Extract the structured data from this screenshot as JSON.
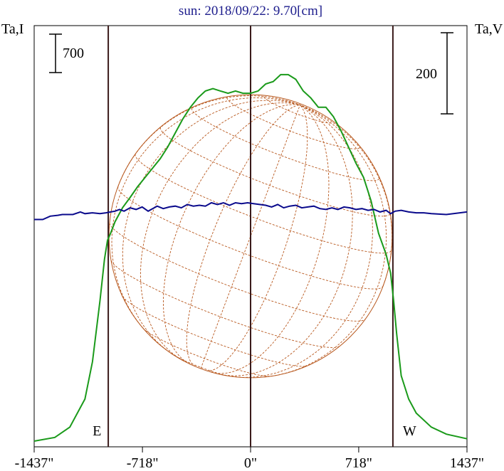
{
  "chart_data": {
    "type": "line",
    "title": "sun: 2018/09/22: 9.70[cm]",
    "left_axis_label": "Ta,I",
    "right_axis_label": "Ta,V",
    "left_scale_bar": "700",
    "right_scale_bar": "200",
    "x_ticks": [
      {
        "value": -1437,
        "label": "-1437\""
      },
      {
        "value": -718,
        "label": "-718\""
      },
      {
        "value": 0,
        "label": "0\""
      },
      {
        "value": 718,
        "label": "718\""
      },
      {
        "value": 1437,
        "label": "1437\""
      }
    ],
    "xlim": [
      -1437,
      1437
    ],
    "limb_markers": [
      {
        "value": -945,
        "label": "E"
      },
      {
        "value": 0,
        "label": ""
      },
      {
        "value": 945,
        "label": "W"
      }
    ],
    "colors": {
      "intensity": "#1a9a1a",
      "polarization": "#0a0a8c",
      "grid": "#b8581e",
      "markers": "#3a1a1a",
      "title": "#1c1c8c"
    },
    "series": [
      {
        "name": "I",
        "axis": "left",
        "x": [
          -1437,
          -1300,
          -1200,
          -1100,
          -1050,
          -1000,
          -970,
          -950,
          -930,
          -900,
          -850,
          -800,
          -750,
          -700,
          -650,
          -600,
          -550,
          -500,
          -450,
          -400,
          -350,
          -300,
          -250,
          -200,
          -150,
          -100,
          -50,
          0,
          50,
          100,
          150,
          200,
          250,
          300,
          350,
          400,
          450,
          500,
          550,
          600,
          650,
          700,
          750,
          800,
          850,
          900,
          930,
          950,
          970,
          1000,
          1050,
          1100,
          1200,
          1300,
          1437
        ],
        "y": [
          0,
          80,
          300,
          900,
          1700,
          3000,
          3900,
          4300,
          4450,
          4700,
          5000,
          5220,
          5450,
          5650,
          5850,
          6050,
          6300,
          6600,
          6900,
          7150,
          7350,
          7500,
          7550,
          7500,
          7450,
          7500,
          7450,
          7450,
          7500,
          7650,
          7700,
          7850,
          7850,
          7750,
          7500,
          7350,
          7150,
          7150,
          6950,
          6650,
          6300,
          5950,
          5650,
          5150,
          4450,
          4000,
          3600,
          3000,
          2300,
          1400,
          900,
          600,
          300,
          150,
          50
        ]
      },
      {
        "name": "V",
        "axis": "right",
        "x": [
          -1437,
          -1380,
          -1330,
          -1280,
          -1250,
          -1180,
          -1130,
          -1100,
          -1050,
          -1000,
          -960,
          -930,
          -900,
          -870,
          -840,
          -800,
          -760,
          -720,
          -680,
          -650,
          -620,
          -580,
          -540,
          -500,
          -460,
          -420,
          -380,
          -340,
          -300,
          -260,
          -220,
          -180,
          -140,
          -100,
          -60,
          -20,
          20,
          60,
          100,
          140,
          180,
          220,
          260,
          300,
          340,
          380,
          420,
          460,
          500,
          540,
          580,
          620,
          660,
          700,
          740,
          780,
          820,
          860,
          900,
          930,
          960,
          1000,
          1050,
          1100,
          1150,
          1200,
          1300,
          1437
        ],
        "y": [
          0,
          0,
          20,
          25,
          30,
          30,
          45,
          35,
          40,
          35,
          40,
          45,
          50,
          60,
          50,
          70,
          60,
          75,
          50,
          65,
          80,
          65,
          75,
          80,
          70,
          90,
          80,
          85,
          80,
          100,
          90,
          100,
          85,
          100,
          95,
          100,
          95,
          90,
          85,
          75,
          90,
          70,
          80,
          85,
          70,
          75,
          80,
          65,
          60,
          70,
          60,
          75,
          70,
          60,
          65,
          55,
          60,
          45,
          55,
          35,
          50,
          55,
          45,
          40,
          40,
          35,
          30,
          45
        ]
      }
    ],
    "y_left_range": [
      0,
      8900
    ],
    "y_right_range": [
      -1360,
      1160
    ],
    "grid": false
  }
}
